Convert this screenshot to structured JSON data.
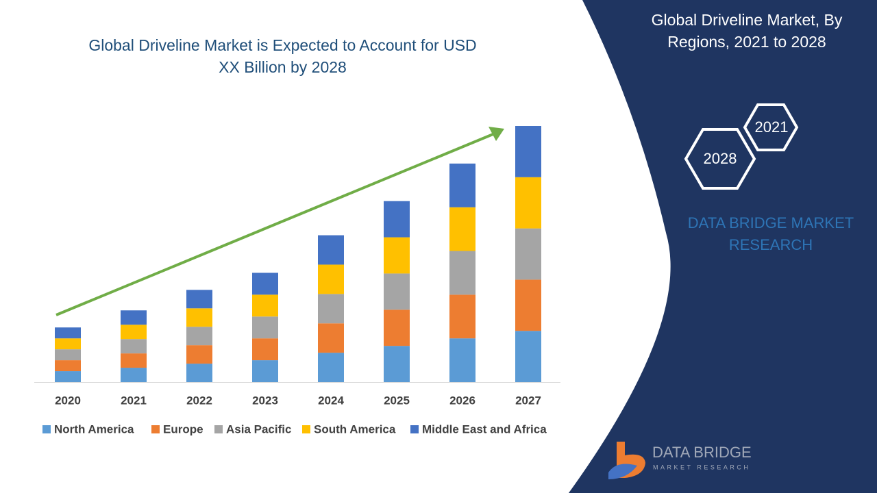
{
  "chart_data": {
    "type": "stacked-bar",
    "title": "Global Driveline Market is Expected to Account for USD XX Billion by 2028",
    "categories": [
      "2020",
      "2021",
      "2022",
      "2023",
      "2024",
      "2025",
      "2026",
      "2027"
    ],
    "series": [
      {
        "name": "North America",
        "color": "#5b9bd5",
        "values": [
          16,
          21,
          27,
          32,
          43,
          53,
          64,
          75
        ]
      },
      {
        "name": "Europe",
        "color": "#ed7d31",
        "values": [
          16,
          21,
          27,
          32,
          43,
          53,
          64,
          75
        ]
      },
      {
        "name": "Asia Pacific",
        "color": "#a5a5a5",
        "values": [
          16,
          21,
          27,
          32,
          43,
          53,
          64,
          75
        ]
      },
      {
        "name": "South America",
        "color": "#ffc000",
        "values": [
          16,
          21,
          27,
          32,
          43,
          53,
          64,
          75
        ]
      },
      {
        "name": "Middle East and Africa",
        "color": "#4472c4",
        "values": [
          16,
          21,
          27,
          32,
          43,
          53,
          64,
          75
        ]
      }
    ],
    "legend": "bottom"
  },
  "side_panel": {
    "title": "Global Driveline Market, By Regions, 2021 to 2028",
    "hexagons": [
      "2021",
      "2028"
    ],
    "brand": "DATA BRIDGE MARKET RESEARCH"
  },
  "logo": {
    "name": "DATA BRIDGE",
    "tagline": "MARKET RESEARCH"
  }
}
